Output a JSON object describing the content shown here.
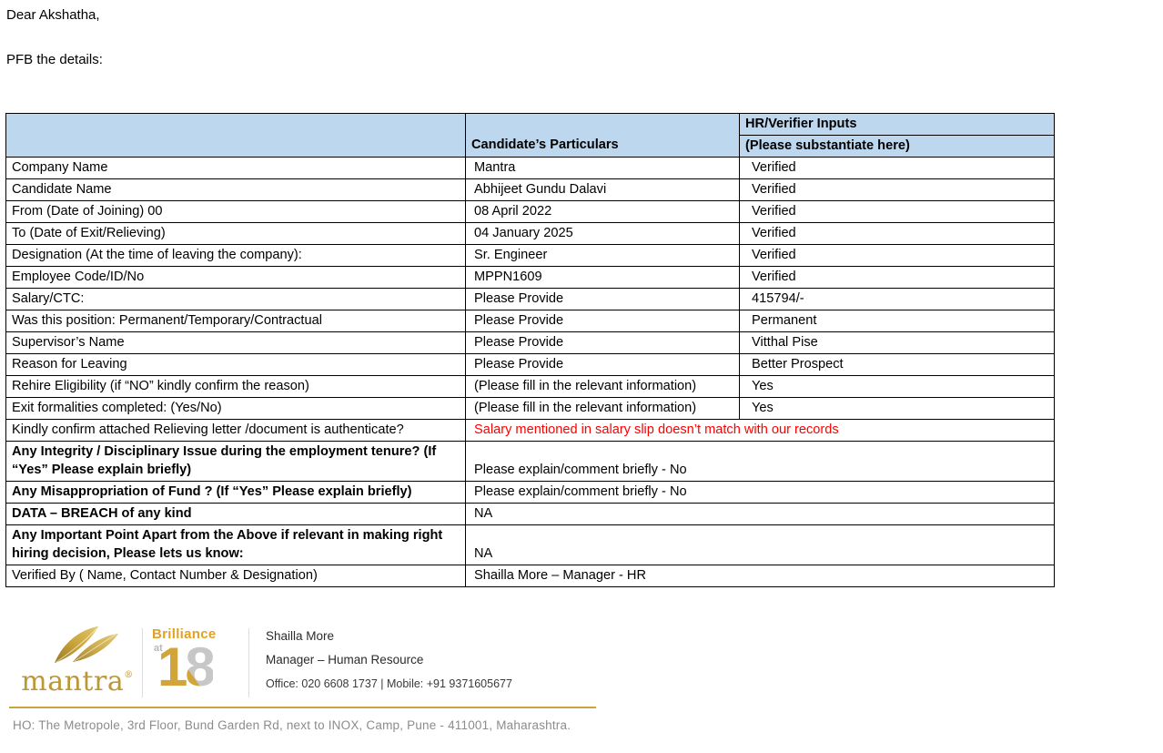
{
  "letter": {
    "greeting": "Dear Akshatha,",
    "intro": "PFB the details:"
  },
  "table": {
    "header": {
      "col1": "",
      "col2": "Candidate’s Particulars",
      "col3_line1": "HR/Verifier Inputs",
      "col3_line2": "(Please substantiate here)"
    },
    "rows": [
      {
        "label": "Company Name",
        "bold": false,
        "particulars": "Mantra",
        "verifier": "Verified"
      },
      {
        "label": "Candidate Name",
        "bold": false,
        "particulars": "Abhijeet Gundu Dalavi",
        "verifier": "Verified"
      },
      {
        "label": "From (Date of Joining) 00",
        "bold": false,
        "particulars": "08 April 2022",
        "verifier": "Verified"
      },
      {
        "label": "To (Date of Exit/Relieving)",
        "bold": false,
        "particulars": "04 January 2025",
        "verifier": "Verified"
      },
      {
        "label": "Designation (At the time of leaving the company):",
        "bold": false,
        "particulars": "Sr. Engineer",
        "verifier": "Verified"
      },
      {
        "label": "Employee Code/ID/No",
        "bold": false,
        "particulars": "MPPN1609",
        "verifier": "Verified"
      },
      {
        "label": "Salary/CTC:",
        "bold": false,
        "particulars": "Please Provide",
        "verifier": "415794/-"
      },
      {
        "label": "Was this position: Permanent/Temporary/Contractual",
        "bold": false,
        "particulars": "Please Provide",
        "verifier": "Permanent"
      },
      {
        "label": "Supervisor’s Name",
        "bold": false,
        "particulars": "Please Provide",
        "verifier": "Vitthal Pise"
      },
      {
        "label": "Reason for Leaving",
        "bold": false,
        "particulars": "Please Provide",
        "verifier": "Better Prospect"
      },
      {
        "label": "Rehire Eligibility (if “NO” kindly confirm the reason)",
        "bold": false,
        "particulars": "(Please fill in the relevant information)",
        "verifier": "Yes"
      },
      {
        "label": "Exit formalities completed: (Yes/No)",
        "bold": false,
        "particulars": "(Please fill in the relevant information)",
        "verifier": "Yes"
      },
      {
        "label": "Kindly confirm attached Relieving letter /document is authenticate?",
        "bold": false,
        "span_value": "Salary mentioned in salary slip doesn’t match with our records",
        "red": true
      },
      {
        "label": "Any Integrity / Disciplinary Issue during the employment tenure? (If “Yes” Please explain briefly)",
        "bold": true,
        "span_value": "Please explain/comment briefly - No",
        "valign": "bottom"
      },
      {
        "label": "Any Misappropriation of Fund ? (If “Yes” Please explain briefly)",
        "bold": true,
        "span_value": "Please explain/comment briefly - No"
      },
      {
        "label": "DATA – BREACH of any kind",
        "bold": true,
        "span_value": "NA"
      },
      {
        "label": "Any Important Point Apart from the Above if relevant in making right hiring decision, Please lets us know:",
        "bold": true,
        "span_value": "NA",
        "valign": "bottom"
      },
      {
        "label": "Verified By ( Name, Contact Number & Designation)",
        "bold": false,
        "span_value": "Shailla More – Manager - HR"
      }
    ]
  },
  "signature": {
    "brand_word": "mantra",
    "brand_reg": "®",
    "badge_word": "Brilliance",
    "badge_at": "at",
    "badge_digit_1": "1",
    "badge_digit_8": "8",
    "name": "Shailla More",
    "title": "Manager – Human Resource",
    "phone": "Office: 020 6608 1737 | Mobile: +91 9371605677"
  },
  "footer": {
    "address": "HO: The Metropole, 3rd Floor, Bund Garden Rd, next to INOX, Camp, Pune - 411001, Maharashtra."
  },
  "icons": {
    "mantra_leaf": "mantra-leaf-icon"
  },
  "colors": {
    "header_bg": "#BDD7EE",
    "alert_red": "#FF0000",
    "brand_gold": "#C19A2E",
    "rule_gold": "#C9A53C",
    "footer_gray": "#8C8C8C",
    "border_black": "#000000"
  }
}
